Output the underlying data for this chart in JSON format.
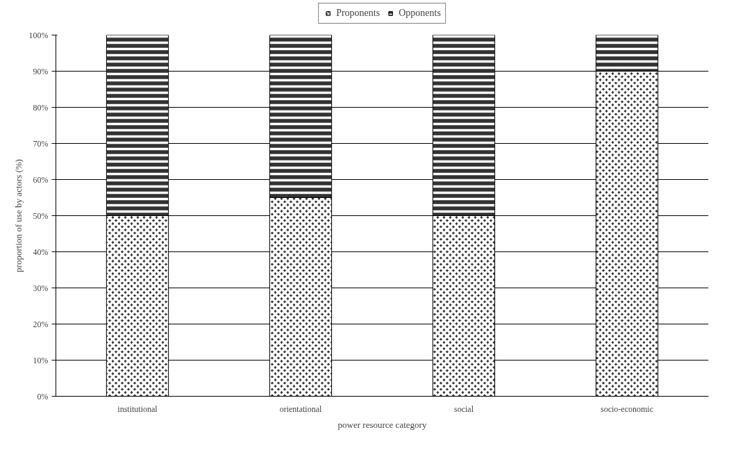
{
  "chart_data": {
    "type": "bar",
    "stacked": true,
    "xlabel": "power resource category",
    "ylabel": "proportion of use by actors (%)",
    "categories": [
      "institutional",
      "orientational",
      "social",
      "socio-economic"
    ],
    "series": [
      {
        "name": "Proponents",
        "color": "#333333",
        "values": [
          50,
          55,
          50,
          90
        ]
      },
      {
        "name": "Opponents",
        "color": "#333333",
        "values": [
          50,
          45,
          50,
          10
        ]
      }
    ],
    "ylim": [
      0,
      100
    ],
    "yticks": [
      {
        "value": 0,
        "label": "0%"
      },
      {
        "value": 10,
        "label": "10%"
      },
      {
        "value": 20,
        "label": "20%"
      },
      {
        "value": 30,
        "label": "30%"
      },
      {
        "value": 40,
        "label": "40%"
      },
      {
        "value": 50,
        "label": "50%"
      },
      {
        "value": 60,
        "label": "60%"
      },
      {
        "value": 70,
        "label": "70%"
      },
      {
        "value": 80,
        "label": "80%"
      },
      {
        "value": 90,
        "label": "90%"
      },
      {
        "value": 100,
        "label": "100%"
      }
    ],
    "grid": "y",
    "legend": "top"
  }
}
